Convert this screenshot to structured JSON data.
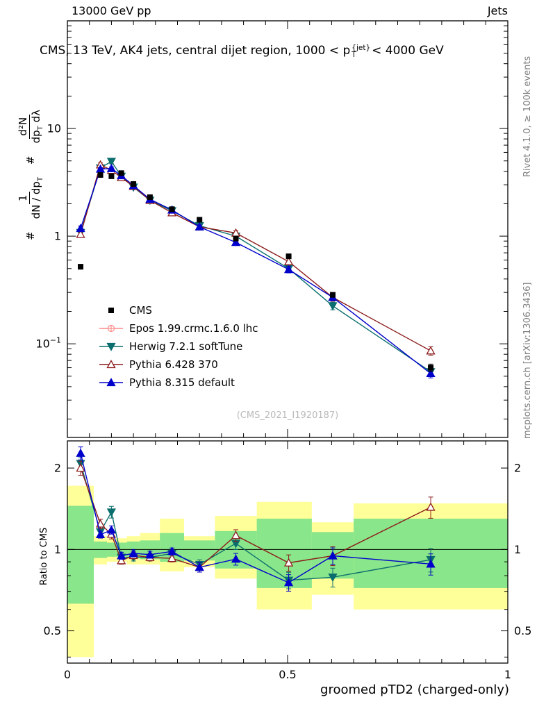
{
  "labels": {
    "header_left": "13000 GeV pp",
    "header_right": "Jets",
    "title_prefix": "CMS, 13 TeV, AK4 jets, central dijet region, 1000 < p",
    "title_sup": "{jet}",
    "title_sub": "T",
    "title_suffix": "< 4000 GeV",
    "watermark": "(CMS_2021_I1920187)",
    "rivet_side": "Rivet 4.1.0, ≥ 100k events",
    "mcplots_side": "mcplots.cern.ch [arXiv:1306.3436]",
    "ratio_ylabel": "Ratio to CMS",
    "x_title": "groomed pTD2 (charged-only)",
    "ylabel": {
      "hash1": "#",
      "f1_num": "1",
      "f1_den": "dN / dp",
      "f1_den_sub": "T",
      "hash2": "#",
      "f2_num": "d²N",
      "f2_den": "dp",
      "f2_den_sub": "T",
      "f2_den_tail": " dλ"
    }
  },
  "chart_data": {
    "type": "line",
    "title": "CMS, 13 TeV, AK4 jets, central dijet region, 1000 < pT{jet} < 4000 GeV",
    "xlabel": "groomed pTD2 (charged-only)",
    "ylabel": "# 1/(dN/dpT) d²N/(dpT dλ)",
    "ratio_ylabel": "Ratio to CMS",
    "legend_position": "inside-left-middle",
    "grid": false,
    "axes": {
      "xlim": [
        0,
        1
      ],
      "x_ticks": [
        {
          "v": 0,
          "label": "0"
        },
        {
          "v": 0.5,
          "label": "0.5"
        },
        {
          "v": 1,
          "label": "1"
        }
      ],
      "x_minor_step": 0.05,
      "main_ylim": [
        0.0135,
        100
      ],
      "main_y_ticks": [
        {
          "v": 10,
          "label": "10"
        },
        {
          "v": 1,
          "label": "1"
        },
        {
          "v": 0.1,
          "label": "10",
          "sup": "−1"
        }
      ],
      "ratio_ylim": [
        0.38,
        2.52
      ],
      "ratio_y_ticks": [
        {
          "v": 0.5,
          "label": "0.5"
        },
        {
          "v": 1,
          "label": "1"
        },
        {
          "v": 2,
          "label": "2"
        }
      ],
      "ratio_y_minor": [
        0.4,
        0.6,
        0.7,
        0.8,
        0.9
      ]
    },
    "x": [
      0.03,
      0.075,
      0.1,
      0.1225,
      0.15,
      0.1875,
      0.2375,
      0.3,
      0.3825,
      0.5025,
      0.6025,
      0.825
    ],
    "series": [
      {
        "name": "CMS",
        "role": "ref",
        "color": "#000000",
        "marker": "square",
        "filled": true,
        "line": false,
        "plotted": true,
        "values": [
          0.52,
          3.7,
          3.6,
          3.85,
          3.05,
          2.3,
          1.78,
          1.42,
          0.95,
          0.65,
          0.285,
          0.06
        ],
        "err_frac": [
          0.05,
          0.025,
          0.025,
          0.025,
          0.025,
          0.025,
          0.025,
          0.03,
          0.03,
          0.04,
          0.05,
          0.08
        ]
      },
      {
        "name": "Epos 1.99.crmc.1.6.0 lhc",
        "role": "mc",
        "color": "#ff8a8a",
        "marker": "circle-cross",
        "filled": false,
        "line": true,
        "plotted": false,
        "values": [],
        "err_frac": []
      },
      {
        "name": "Herwig 7.2.1 softTune",
        "role": "mc",
        "color": "#0b6e6e",
        "marker": "tri-down",
        "filled": true,
        "line": true,
        "plotted": true,
        "values": [
          1.08,
          4.3,
          4.95,
          3.6,
          2.85,
          2.15,
          1.72,
          1.25,
          1.0,
          0.5,
          0.225,
          0.055
        ],
        "err_frac": [
          0.05,
          0.03,
          0.05,
          0.03,
          0.03,
          0.03,
          0.03,
          0.04,
          0.05,
          0.07,
          0.08,
          0.1
        ]
      },
      {
        "name": "Pythia 6.428 370",
        "role": "mc",
        "color": "#8b1a1a",
        "marker": "tri-up",
        "filled": false,
        "line": true,
        "plotted": true,
        "values": [
          1.04,
          4.6,
          4.1,
          3.5,
          2.9,
          2.15,
          1.65,
          1.22,
          1.07,
          0.58,
          0.27,
          0.086
        ],
        "err_frac": [
          0.06,
          0.04,
          0.04,
          0.03,
          0.03,
          0.03,
          0.03,
          0.04,
          0.05,
          0.07,
          0.08,
          0.09
        ]
      },
      {
        "name": "Pythia 8.315 default",
        "role": "mc",
        "color": "#0000cc",
        "marker": "tri-up",
        "filled": true,
        "line": true,
        "plotted": true,
        "values": [
          1.18,
          4.2,
          4.25,
          3.65,
          2.95,
          2.2,
          1.75,
          1.22,
          0.875,
          0.49,
          0.27,
          0.053
        ],
        "err_frac": [
          0.055,
          0.03,
          0.035,
          0.03,
          0.03,
          0.03,
          0.03,
          0.04,
          0.05,
          0.07,
          0.07,
          0.09
        ]
      }
    ],
    "bands": {
      "yellow_color": "#ffff99",
      "green_color": "#8ae68a",
      "bin_edges": [
        0,
        0.06,
        0.09,
        0.11,
        0.135,
        0.165,
        0.21,
        0.265,
        0.335,
        0.43,
        0.555,
        0.65,
        1.0
      ],
      "yellow_lo": [
        0.4,
        0.88,
        0.9,
        0.9,
        0.88,
        0.88,
        0.83,
        0.86,
        0.78,
        0.6,
        0.68,
        0.6
      ],
      "yellow_hi": [
        1.72,
        1.12,
        1.1,
        1.1,
        1.12,
        1.15,
        1.3,
        1.12,
        1.33,
        1.5,
        1.26,
        1.48
      ],
      "green_lo": [
        0.63,
        0.93,
        0.94,
        0.94,
        0.93,
        0.92,
        0.9,
        0.91,
        0.85,
        0.72,
        0.78,
        0.72
      ],
      "green_hi": [
        1.45,
        1.07,
        1.06,
        1.06,
        1.07,
        1.08,
        1.15,
        1.08,
        1.17,
        1.3,
        1.16,
        1.3
      ]
    }
  }
}
